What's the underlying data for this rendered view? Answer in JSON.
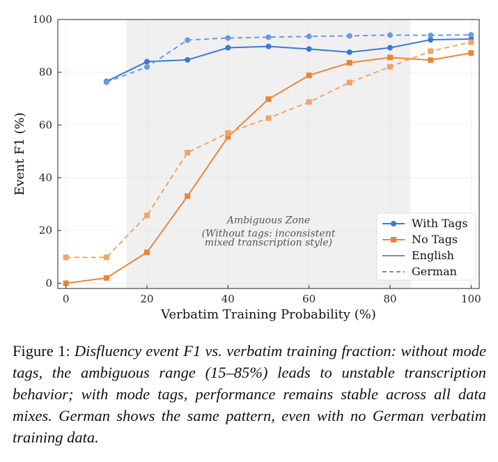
{
  "chart_data": {
    "type": "line",
    "xlabel": "Verbatim Training Probability (%)",
    "ylabel": "Event F1 (%)",
    "xlim": [
      -2,
      102
    ],
    "ylim": [
      -2,
      100
    ],
    "xticks": [
      0,
      20,
      40,
      60,
      80,
      100
    ],
    "yticks": [
      0,
      20,
      40,
      60,
      80,
      100
    ],
    "grid": true,
    "legend_position": "bottom-right",
    "shaded_region": {
      "x": [
        15,
        85
      ],
      "color": "#f0f0f0",
      "annotation": [
        "Ambiguous Zone",
        "(Without tags: inconsistent",
        "mixed transcription style)"
      ],
      "annotation_x": 50,
      "annotation_y": [
        24,
        19,
        15.6
      ]
    },
    "series": [
      {
        "name": "With Tags",
        "language": "English",
        "color": "#3a78d4",
        "marker": "circle",
        "dash": "solid",
        "x": [
          10,
          20,
          30,
          40,
          50,
          60,
          70,
          80,
          90,
          100
        ],
        "values": [
          76.5,
          84,
          84.7,
          89.3,
          89.8,
          88.8,
          87.6,
          89.3,
          92.3,
          92.6
        ]
      },
      {
        "name": "With Tags",
        "language": "German",
        "color": "#6a98e6",
        "marker": "circle",
        "dash": "dashed",
        "x": [
          10,
          20,
          30,
          40,
          50,
          60,
          70,
          80,
          90,
          100
        ],
        "values": [
          76.2,
          82,
          92.2,
          93,
          93.3,
          93.6,
          93.8,
          94.1,
          94,
          94.2
        ]
      },
      {
        "name": "No Tags",
        "language": "English",
        "color": "#ea8537",
        "marker": "square",
        "dash": "solid",
        "x": [
          0,
          10,
          20,
          30,
          40,
          50,
          60,
          70,
          80,
          90,
          100
        ],
        "values": [
          0,
          2,
          11.7,
          33,
          55.5,
          69.8,
          78.8,
          83.6,
          85.6,
          84.6,
          87.3
        ]
      },
      {
        "name": "No Tags",
        "language": "German",
        "color": "#f0a466",
        "marker": "square",
        "dash": "dashed",
        "x": [
          0,
          10,
          20,
          30,
          40,
          50,
          60,
          70,
          80,
          90,
          100
        ],
        "values": [
          9.8,
          9.8,
          25.7,
          49.5,
          57,
          62.6,
          68.7,
          76.1,
          82.1,
          88,
          91.4
        ]
      }
    ],
    "legend": [
      {
        "label": "With Tags",
        "kind": "marker",
        "color": "#3a78d4",
        "marker": "circle"
      },
      {
        "label": "No Tags",
        "kind": "marker",
        "color": "#ea8537",
        "marker": "square"
      },
      {
        "label": "English",
        "kind": "line",
        "color": "#888888",
        "dash": "solid"
      },
      {
        "label": "German",
        "kind": "line",
        "color": "#888888",
        "dash": "dashed"
      }
    ]
  },
  "caption": {
    "label": "Figure 1: ",
    "text": "Disfluency event F1 vs.  verbatim training fraction: without mode tags, the ambiguous range (15–85%) leads to unstable transcription behavior; with mode tags, performance remains stable across all data mixes.  German shows the same pattern, even with no German verbatim training data."
  }
}
